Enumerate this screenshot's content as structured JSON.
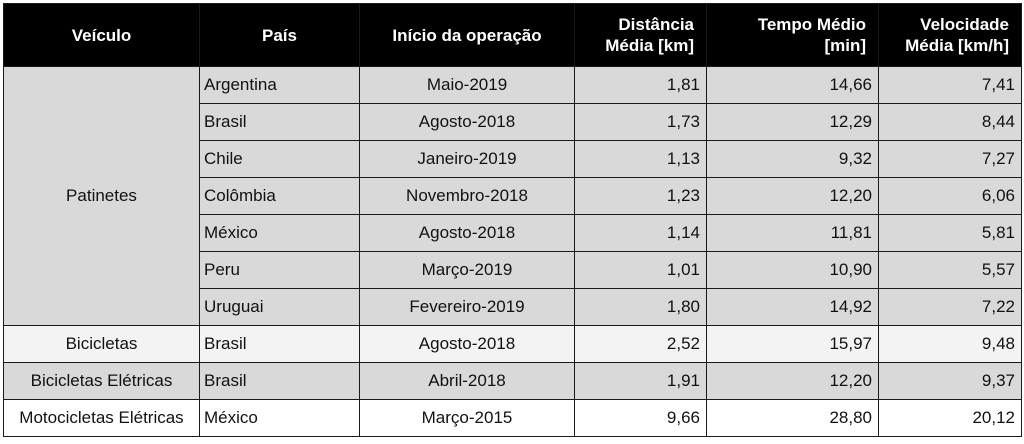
{
  "headers": {
    "vehicle": "Veículo",
    "country": "País",
    "start": "Início da operação",
    "distance": "Distância Média [km]",
    "time": "Tempo Médio [min]",
    "speed": "Velocidade Média [km/h]"
  },
  "groups": [
    {
      "vehicle": "Patinetes",
      "rows": [
        {
          "country": "Argentina",
          "start": "Maio-2019",
          "distance": "1,81",
          "time": "14,66",
          "speed": "7,41"
        },
        {
          "country": "Brasil",
          "start": "Agosto-2018",
          "distance": "1,73",
          "time": "12,29",
          "speed": "8,44"
        },
        {
          "country": "Chile",
          "start": "Janeiro-2019",
          "distance": "1,13",
          "time": "9,32",
          "speed": "7,27"
        },
        {
          "country": "Colômbia",
          "start": "Novembro-2018",
          "distance": "1,23",
          "time": "12,20",
          "speed": "6,06"
        },
        {
          "country": "México",
          "start": "Agosto-2018",
          "distance": "1,14",
          "time": "11,81",
          "speed": "5,81"
        },
        {
          "country": "Peru",
          "start": "Março-2019",
          "distance": "1,01",
          "time": "10,90",
          "speed": "5,57"
        },
        {
          "country": "Uruguai",
          "start": "Fevereiro-2019",
          "distance": "1,80",
          "time": "14,92",
          "speed": "7,22"
        }
      ]
    },
    {
      "vehicle": "Bicicletas",
      "rows": [
        {
          "country": "Brasil",
          "start": "Agosto-2018",
          "distance": "2,52",
          "time": "15,97",
          "speed": "9,48"
        }
      ]
    },
    {
      "vehicle": "Bicicletas Elétricas",
      "rows": [
        {
          "country": "Brasil",
          "start": "Abril-2018",
          "distance": "1,91",
          "time": "12,20",
          "speed": "9,37"
        }
      ]
    },
    {
      "vehicle": "Motocicletas Elétricas",
      "rows": [
        {
          "country": "México",
          "start": "Março-2015",
          "distance": "9,66",
          "time": "28,80",
          "speed": "20,12"
        }
      ]
    }
  ]
}
